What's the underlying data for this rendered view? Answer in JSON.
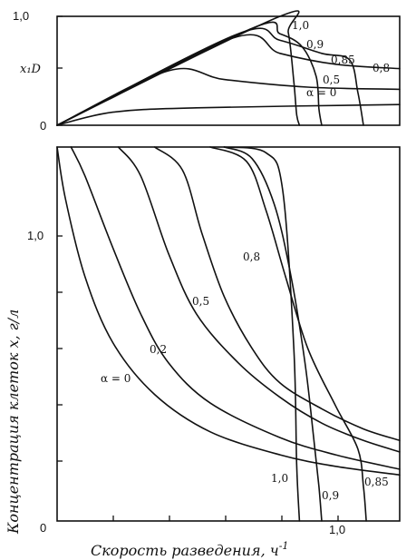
{
  "chart_data": [
    {
      "type": "line",
      "ylabel": "x₁D",
      "y_tick_labels": [
        "1,0",
        "0"
      ],
      "ylim": [
        0,
        1.0
      ],
      "xlim": [
        0,
        1.23
      ],
      "curve_labels": [
        "1,0",
        "0,9",
        "0,85",
        "0,8",
        "0,5",
        "α = 0"
      ],
      "series": [
        {
          "name": "1,0",
          "x": [
            0,
            0.8,
            0.83,
            0.85,
            0.86,
            0.87
          ],
          "y": [
            0,
            1.0,
            0.85,
            0.4,
            0.1,
            0
          ]
        },
        {
          "name": "0,9",
          "x": [
            0,
            0.7,
            0.8,
            0.88,
            0.93,
            0.94,
            0.95
          ],
          "y": [
            0,
            0.89,
            0.84,
            0.72,
            0.45,
            0.15,
            0
          ]
        },
        {
          "name": "0,85",
          "x": [
            0,
            0.65,
            0.8,
            0.95,
            1.05,
            1.08,
            1.1
          ],
          "y": [
            0,
            0.84,
            0.78,
            0.66,
            0.6,
            0.3,
            0
          ]
        },
        {
          "name": "0,8",
          "x": [
            0,
            0.63,
            0.8,
            1.0,
            1.23
          ],
          "y": [
            0,
            0.8,
            0.66,
            0.56,
            0.52
          ]
        },
        {
          "name": "0,5",
          "x": [
            0,
            0.4,
            0.6,
            0.9,
            1.23
          ],
          "y": [
            0,
            0.5,
            0.42,
            0.35,
            0.33
          ]
        },
        {
          "name": "α = 0",
          "x": [
            0,
            0.2,
            0.5,
            1.23
          ],
          "y": [
            0,
            0.12,
            0.16,
            0.19
          ]
        }
      ]
    },
    {
      "type": "line",
      "xlabel": "Скорость разведения, ч",
      "xlabel_superscript": "-1",
      "ylabel": "Концентрация клеток x, г/л",
      "x_tick_labels": [
        "0",
        "1,0"
      ],
      "y_tick_labels": [
        "1,0",
        "0"
      ],
      "ylim": [
        0,
        1.3
      ],
      "xlim": [
        0,
        1.23
      ],
      "curve_labels_top": [
        "0,8",
        "0,5",
        "0,2",
        "α = 0"
      ],
      "curve_labels_bottom": [
        "1,0",
        "0,9",
        "0,85"
      ],
      "series": [
        {
          "name": "α = 0",
          "x": [
            0,
            0.03,
            0.1,
            0.2,
            0.35,
            0.55,
            0.8,
            1.0,
            1.23
          ],
          "y": [
            1.3,
            1.12,
            0.85,
            0.62,
            0.44,
            0.31,
            0.23,
            0.19,
            0.16
          ]
        },
        {
          "name": "0,2",
          "x": [
            0.05,
            0.1,
            0.2,
            0.3,
            0.4,
            0.55,
            0.8,
            1.0,
            1.23
          ],
          "y": [
            1.3,
            1.2,
            0.95,
            0.72,
            0.55,
            0.41,
            0.29,
            0.23,
            0.18
          ]
        },
        {
          "name": "0,5",
          "x": [
            0.22,
            0.3,
            0.4,
            0.5,
            0.65,
            0.8,
            0.95,
            1.1,
            1.23
          ],
          "y": [
            1.3,
            1.2,
            0.93,
            0.72,
            0.55,
            0.43,
            0.34,
            0.28,
            0.24
          ]
        },
        {
          "name": "0,8",
          "x": [
            0.35,
            0.45,
            0.52,
            0.6,
            0.7,
            0.8,
            0.95,
            1.1,
            1.23
          ],
          "y": [
            1.3,
            1.22,
            1.0,
            0.78,
            0.6,
            0.48,
            0.39,
            0.32,
            0.28
          ]
        },
        {
          "name": "0,85",
          "x": [
            0.55,
            0.68,
            0.75,
            0.82,
            0.9,
            1.0,
            1.08,
            1.1,
            1.11
          ],
          "y": [
            1.3,
            1.25,
            1.08,
            0.85,
            0.6,
            0.4,
            0.25,
            0.12,
            0
          ]
        },
        {
          "name": "0,9",
          "x": [
            0.6,
            0.7,
            0.78,
            0.84,
            0.89,
            0.92,
            0.94,
            0.95
          ],
          "y": [
            1.3,
            1.26,
            1.1,
            0.85,
            0.55,
            0.3,
            0.12,
            0
          ]
        },
        {
          "name": "1,0",
          "x": [
            0.6,
            0.75,
            0.81,
            0.85,
            0.86,
            0.87
          ],
          "y": [
            1.3,
            1.28,
            1.15,
            0.6,
            0.2,
            0
          ]
        }
      ]
    }
  ]
}
